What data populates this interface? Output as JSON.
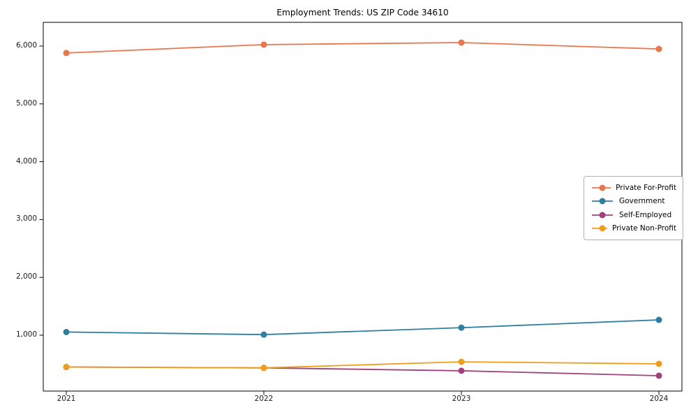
{
  "title": "Employment Trends: US ZIP Code 34610",
  "chart_data": {
    "type": "line",
    "title": "Employment Trends: US ZIP Code 34610",
    "xlabel": "",
    "ylabel": "",
    "x": [
      "2021",
      "2022",
      "2023",
      "2024"
    ],
    "series": [
      {
        "name": "Private For-Profit",
        "color": "#e8764a",
        "values": [
          5880,
          6025,
          6060,
          5950
        ]
      },
      {
        "name": "Government",
        "color": "#2f7f9f",
        "values": [
          1055,
          1010,
          1130,
          1265
        ]
      },
      {
        "name": "Self-Employed",
        "color": "#a3417e",
        "values": [
          450,
          435,
          385,
          300
        ]
      },
      {
        "name": "Private Non-Profit",
        "color": "#f09c1d",
        "values": [
          450,
          435,
          540,
          505
        ]
      }
    ],
    "yticks": [
      {
        "value": 1000,
        "label": "1,000"
      },
      {
        "value": 2000,
        "label": "2,000"
      },
      {
        "value": 3000,
        "label": "3,000"
      },
      {
        "value": 4000,
        "label": "4,000"
      },
      {
        "value": 5000,
        "label": "5,000"
      },
      {
        "value": 6000,
        "label": "6,000"
      }
    ],
    "ylim": [
      34,
      6410
    ],
    "grid": false,
    "marker": "circle",
    "legend_position": "center-right"
  }
}
